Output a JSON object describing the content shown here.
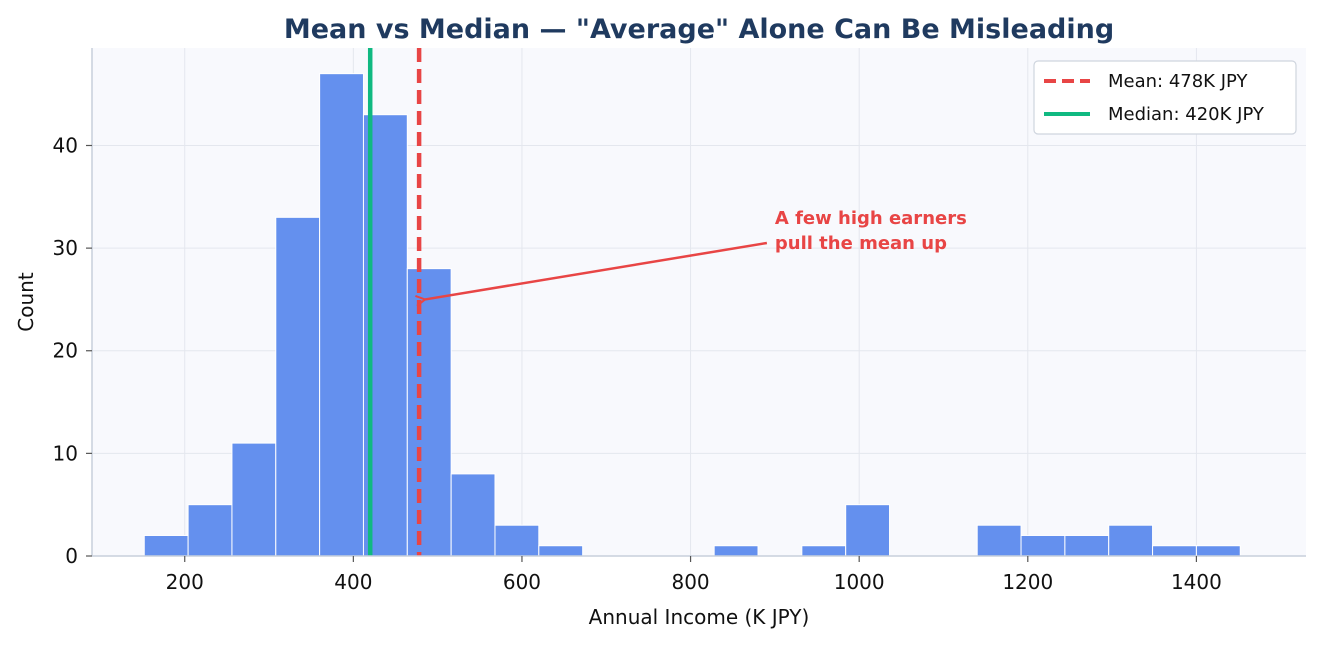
{
  "chart_data": {
    "type": "bar",
    "title": "Mean vs Median — \"Average\" Alone Can Be Misleading",
    "xlabel": "Annual Income (K JPY)",
    "ylabel": "Count",
    "xlim": [
      90,
      1530
    ],
    "ylim": [
      0,
      49.5
    ],
    "xticks": [
      200,
      400,
      600,
      800,
      1000,
      1200,
      1400
    ],
    "yticks": [
      0,
      10,
      20,
      30,
      40
    ],
    "bins": [
      {
        "x0": 152,
        "x1": 204,
        "count": 2
      },
      {
        "x0": 204,
        "x1": 256,
        "count": 5
      },
      {
        "x0": 256,
        "x1": 308,
        "count": 11
      },
      {
        "x0": 308,
        "x1": 360,
        "count": 33
      },
      {
        "x0": 360,
        "x1": 412,
        "count": 47
      },
      {
        "x0": 412,
        "x1": 464,
        "count": 43
      },
      {
        "x0": 464,
        "x1": 516,
        "count": 28
      },
      {
        "x0": 516,
        "x1": 568,
        "count": 8
      },
      {
        "x0": 568,
        "x1": 620,
        "count": 3
      },
      {
        "x0": 620,
        "x1": 672,
        "count": 1
      },
      {
        "x0": 828,
        "x1": 880,
        "count": 1
      },
      {
        "x0": 932,
        "x1": 984,
        "count": 1
      },
      {
        "x0": 984,
        "x1": 1036,
        "count": 5
      },
      {
        "x0": 1140,
        "x1": 1192,
        "count": 3
      },
      {
        "x0": 1192,
        "x1": 1244,
        "count": 2
      },
      {
        "x0": 1244,
        "x1": 1296,
        "count": 2
      },
      {
        "x0": 1296,
        "x1": 1348,
        "count": 3
      },
      {
        "x0": 1348,
        "x1": 1400,
        "count": 1
      },
      {
        "x0": 1400,
        "x1": 1452,
        "count": 1
      }
    ],
    "mean": {
      "value": 478,
      "label": "Mean: 478K JPY",
      "color": "#e84545"
    },
    "median": {
      "value": 420,
      "label": "Median: 420K JPY",
      "color": "#10b981"
    },
    "bar_color": "#6490ee",
    "background_color": "#f8f9fd",
    "grid": true,
    "legend_position": "top-right",
    "annotation": {
      "lines": [
        "A few high earners",
        "pull the mean up"
      ],
      "target": {
        "x": 478,
        "y": 25
      },
      "text_anchor": {
        "x": 900,
        "y": 30.5
      },
      "color": "#e84545"
    }
  }
}
